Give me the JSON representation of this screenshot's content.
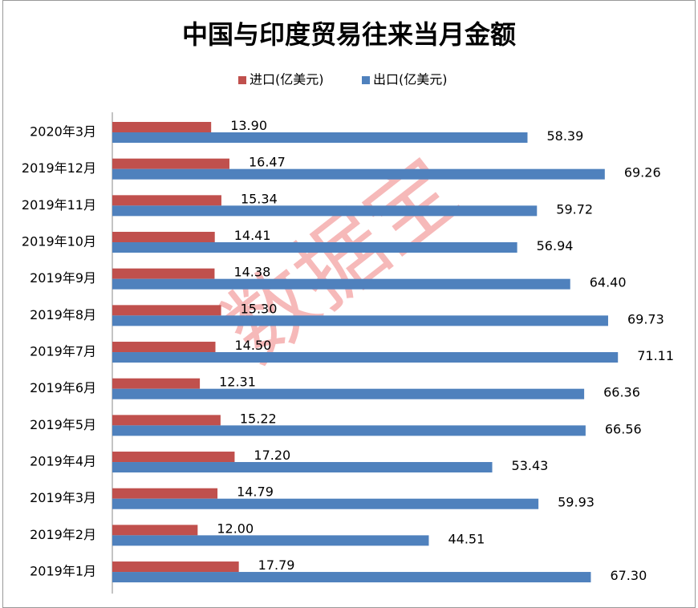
{
  "chart_data": {
    "type": "bar",
    "orientation": "horizontal",
    "title": "中国与印度贸易往来当月金额",
    "watermark": "数据宝",
    "categories": [
      "2020年3月",
      "2019年12月",
      "2019年11月",
      "2019年10月",
      "2019年9月",
      "2019年8月",
      "2019年7月",
      "2019年6月",
      "2019年5月",
      "2019年4月",
      "2019年3月",
      "2019年2月",
      "2019年1月"
    ],
    "series": [
      {
        "name": "进口(亿美元)",
        "color": "#c0504d",
        "values": [
          13.9,
          16.47,
          15.34,
          14.41,
          14.38,
          15.3,
          14.5,
          12.31,
          15.22,
          17.2,
          14.79,
          12.0,
          17.79
        ],
        "value_labels": [
          "13.90",
          "16.47",
          "15.34",
          "14.41",
          "14.38",
          "15.30",
          "14.50",
          "12.31",
          "15.22",
          "17.20",
          "14.79",
          "12.00",
          "17.79"
        ]
      },
      {
        "name": "出口(亿美元)",
        "color": "#4f81bd",
        "values": [
          58.39,
          69.26,
          59.72,
          56.94,
          64.4,
          69.73,
          71.11,
          66.36,
          66.56,
          53.43,
          59.93,
          44.51,
          67.3
        ],
        "value_labels": [
          "58.39",
          "69.26",
          "59.72",
          "56.94",
          "64.40",
          "69.73",
          "71.11",
          "66.36",
          "66.56",
          "53.43",
          "59.93",
          "44.51",
          "67.30"
        ]
      }
    ],
    "xlim": [
      0,
      80
    ],
    "legend": "top"
  }
}
